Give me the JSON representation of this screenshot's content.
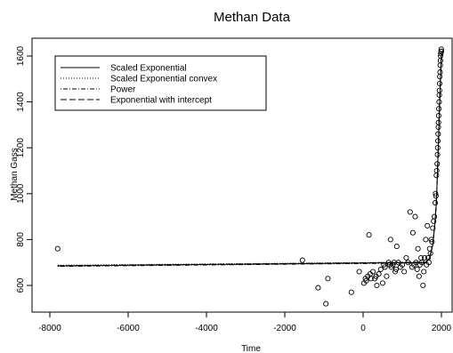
{
  "chart_data": {
    "type": "scatter",
    "title": "Methan Data",
    "xlabel": "Time",
    "ylabel": "Methan Gass",
    "xlim": [
      -8000,
      2000
    ],
    "ylim": [
      500,
      1640
    ],
    "xticks": [
      -8000,
      -6000,
      -4000,
      -2000,
      0,
      2000
    ],
    "xtick_labels": [
      "-8000",
      "-6000",
      "-4000",
      "-2000",
      "0",
      "2000"
    ],
    "yticks": [
      600,
      800,
      1000,
      1200,
      1400,
      1600
    ],
    "ytick_labels": [
      "600",
      "800",
      "1000",
      "1200",
      "1400",
      "1600"
    ],
    "grid": false,
    "legend_position": "top-left",
    "legend": [
      {
        "label": "Scaled Exponential",
        "style": "solid"
      },
      {
        "label": "Scaled Exponential convex",
        "style": "dotted"
      },
      {
        "label": "Power",
        "style": "dotdash"
      },
      {
        "label": "Exponential with intercept",
        "style": "longdash"
      }
    ],
    "points": {
      "x": [
        -7800,
        -1550,
        -1150,
        -950,
        -900,
        -300,
        -100,
        20,
        60,
        80,
        120,
        150,
        180,
        200,
        250,
        300,
        330,
        350,
        400,
        450,
        500,
        530,
        560,
        600,
        650,
        680,
        700,
        720,
        760,
        790,
        820,
        840,
        860,
        900,
        950,
        1000,
        1050,
        1100,
        1150,
        1200,
        1250,
        1270,
        1300,
        1330,
        1350,
        1380,
        1400,
        1430,
        1450,
        1480,
        1500,
        1530,
        1550,
        1570,
        1600,
        1620,
        1640,
        1660,
        1680,
        1700,
        1720,
        1740,
        1760,
        1780,
        1800,
        1820,
        1840,
        1850,
        1860,
        1870,
        1880,
        1890,
        1900,
        1905,
        1910,
        1915,
        1920,
        1925,
        1930,
        1935,
        1940,
        1945,
        1950,
        1955,
        1960,
        1965,
        1970,
        1975,
        1980,
        1985,
        1990,
        1995,
        2000
      ],
      "y": [
        760,
        710,
        590,
        520,
        630,
        570,
        660,
        610,
        630,
        620,
        640,
        820,
        650,
        630,
        660,
        630,
        640,
        600,
        650,
        670,
        610,
        690,
        680,
        640,
        700,
        690,
        800,
        680,
        690,
        700,
        660,
        670,
        770,
        700,
        680,
        690,
        660,
        720,
        700,
        920,
        680,
        830,
        690,
        900,
        700,
        670,
        760,
        640,
        690,
        720,
        700,
        600,
        660,
        720,
        800,
        690,
        860,
        720,
        700,
        760,
        740,
        800,
        790,
        850,
        880,
        900,
        960,
        1000,
        990,
        1080,
        1100,
        1130,
        1170,
        1200,
        1230,
        1260,
        1290,
        1310,
        1340,
        1370,
        1400,
        1430,
        1450,
        1480,
        1510,
        1530,
        1560,
        1580,
        1600,
        1610,
        1620,
        1630,
        1620
      ]
    },
    "series": [
      {
        "name": "Scaled Exponential",
        "style": "solid",
        "flat": 685,
        "rise": [
          [
            1600,
            700
          ],
          [
            1700,
            720
          ],
          [
            1780,
            780
          ],
          [
            1830,
            860
          ],
          [
            1870,
            960
          ],
          [
            1900,
            1100
          ],
          [
            1925,
            1230
          ],
          [
            1950,
            1380
          ],
          [
            1975,
            1500
          ],
          [
            1990,
            1580
          ],
          [
            2000,
            1620
          ]
        ]
      },
      {
        "name": "Scaled Exponential convex",
        "style": "dotted",
        "flat": 688,
        "rise": [
          [
            1600,
            702
          ],
          [
            1700,
            722
          ],
          [
            1780,
            782
          ],
          [
            1830,
            862
          ],
          [
            1870,
            962
          ],
          [
            1900,
            1102
          ],
          [
            1925,
            1232
          ],
          [
            1950,
            1382
          ],
          [
            1975,
            1502
          ],
          [
            1990,
            1582
          ],
          [
            2000,
            1622
          ]
        ]
      },
      {
        "name": "Power",
        "style": "dotdash",
        "flat": 683,
        "rise": [
          [
            1600,
            698
          ],
          [
            1700,
            718
          ],
          [
            1780,
            778
          ],
          [
            1830,
            858
          ],
          [
            1870,
            958
          ],
          [
            1900,
            1098
          ],
          [
            1925,
            1228
          ],
          [
            1950,
            1378
          ],
          [
            1975,
            1498
          ],
          [
            1990,
            1578
          ],
          [
            2000,
            1618
          ]
        ]
      },
      {
        "name": "Exponential with intercept",
        "style": "longdash",
        "flat": 686,
        "rise": [
          [
            1600,
            701
          ],
          [
            1700,
            721
          ],
          [
            1780,
            781
          ],
          [
            1830,
            861
          ],
          [
            1870,
            961
          ],
          [
            1900,
            1101
          ],
          [
            1925,
            1231
          ],
          [
            1950,
            1381
          ],
          [
            1975,
            1501
          ],
          [
            1990,
            1581
          ],
          [
            2000,
            1621
          ]
        ]
      }
    ]
  }
}
